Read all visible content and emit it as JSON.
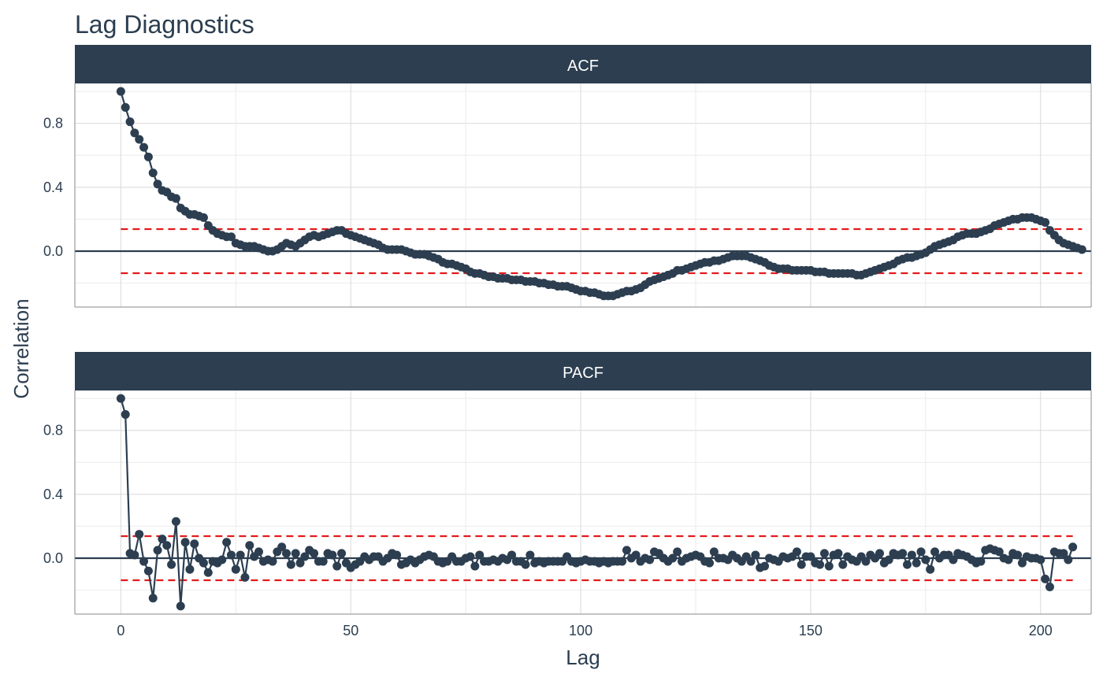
{
  "title": "Lag Diagnostics",
  "colors": {
    "series": "#2c3e50",
    "strip": "#2c3e50",
    "ci": "#e31a1c",
    "grid": "#d9d9d9"
  },
  "chart_data": {
    "type": "line",
    "title": "Lag Diagnostics",
    "xlabel": "Lag",
    "ylabel": "Correlation",
    "xlim": [
      -10,
      211
    ],
    "ylim": [
      -0.35,
      1.05
    ],
    "x_ticks": [
      0,
      50,
      100,
      150,
      200
    ],
    "y_ticks": [
      0.0,
      0.4,
      0.8
    ],
    "y_tick_labels": [
      "0.0",
      "0.4",
      "0.8"
    ],
    "x_tick_labels": [
      "0",
      "50",
      "100",
      "150",
      "200"
    ],
    "grid": true,
    "confidence_bound": 0.138,
    "panels": [
      {
        "label": "ACF",
        "lag_start": 0,
        "lag_step": 1,
        "values": [
          1.0,
          0.9,
          0.81,
          0.74,
          0.7,
          0.65,
          0.59,
          0.49,
          0.42,
          0.38,
          0.37,
          0.34,
          0.33,
          0.27,
          0.25,
          0.23,
          0.23,
          0.22,
          0.21,
          0.16,
          0.13,
          0.11,
          0.1,
          0.09,
          0.09,
          0.05,
          0.04,
          0.03,
          0.03,
          0.03,
          0.02,
          0.01,
          0.0,
          0.0,
          0.01,
          0.03,
          0.05,
          0.04,
          0.03,
          0.05,
          0.07,
          0.09,
          0.1,
          0.09,
          0.1,
          0.11,
          0.12,
          0.13,
          0.13,
          0.11,
          0.1,
          0.09,
          0.08,
          0.07,
          0.06,
          0.05,
          0.04,
          0.02,
          0.01,
          0.01,
          0.01,
          0.01,
          0.0,
          -0.01,
          -0.02,
          -0.02,
          -0.02,
          -0.03,
          -0.04,
          -0.05,
          -0.07,
          -0.08,
          -0.08,
          -0.09,
          -0.1,
          -0.11,
          -0.13,
          -0.14,
          -0.14,
          -0.15,
          -0.16,
          -0.16,
          -0.17,
          -0.17,
          -0.17,
          -0.18,
          -0.18,
          -0.18,
          -0.19,
          -0.19,
          -0.19,
          -0.2,
          -0.2,
          -0.21,
          -0.21,
          -0.22,
          -0.22,
          -0.22,
          -0.23,
          -0.24,
          -0.25,
          -0.25,
          -0.26,
          -0.26,
          -0.27,
          -0.28,
          -0.28,
          -0.28,
          -0.27,
          -0.26,
          -0.25,
          -0.25,
          -0.24,
          -0.23,
          -0.21,
          -0.19,
          -0.18,
          -0.17,
          -0.16,
          -0.15,
          -0.14,
          -0.12,
          -0.12,
          -0.11,
          -0.1,
          -0.09,
          -0.08,
          -0.07,
          -0.07,
          -0.06,
          -0.06,
          -0.05,
          -0.04,
          -0.03,
          -0.03,
          -0.03,
          -0.03,
          -0.04,
          -0.05,
          -0.06,
          -0.07,
          -0.09,
          -0.1,
          -0.11,
          -0.11,
          -0.11,
          -0.12,
          -0.12,
          -0.12,
          -0.12,
          -0.12,
          -0.13,
          -0.13,
          -0.13,
          -0.14,
          -0.14,
          -0.14,
          -0.14,
          -0.14,
          -0.14,
          -0.15,
          -0.15,
          -0.14,
          -0.13,
          -0.12,
          -0.11,
          -0.1,
          -0.09,
          -0.08,
          -0.06,
          -0.05,
          -0.04,
          -0.04,
          -0.03,
          -0.02,
          -0.01,
          0.01,
          0.03,
          0.04,
          0.05,
          0.06,
          0.07,
          0.09,
          0.1,
          0.11,
          0.11,
          0.11,
          0.12,
          0.13,
          0.14,
          0.16,
          0.17,
          0.18,
          0.19,
          0.2,
          0.2,
          0.21,
          0.21,
          0.21,
          0.2,
          0.19,
          0.18,
          0.13,
          0.1,
          0.07,
          0.05,
          0.04,
          0.03,
          0.02,
          0.01
        ]
      },
      {
        "label": "PACF",
        "lag_start": 0,
        "lag_step": 1,
        "values": [
          1.0,
          0.9,
          0.03,
          0.02,
          0.15,
          -0.02,
          -0.08,
          -0.25,
          0.05,
          0.12,
          0.08,
          -0.04,
          0.23,
          -0.3,
          0.1,
          -0.07,
          0.09,
          0.0,
          -0.03,
          -0.09,
          -0.02,
          -0.03,
          -0.01,
          0.1,
          0.02,
          -0.07,
          0.02,
          -0.12,
          0.08,
          0.01,
          0.04,
          -0.02,
          -0.01,
          -0.02,
          0.04,
          0.07,
          0.03,
          -0.04,
          0.03,
          -0.03,
          0.01,
          0.05,
          0.03,
          -0.02,
          -0.02,
          0.03,
          0.02,
          -0.05,
          0.03,
          -0.03,
          -0.06,
          -0.04,
          -0.02,
          0.01,
          -0.01,
          0.01,
          0.01,
          -0.02,
          0.0,
          0.03,
          0.02,
          -0.04,
          -0.03,
          -0.01,
          -0.03,
          -0.01,
          0.01,
          0.02,
          0.01,
          -0.02,
          -0.03,
          -0.02,
          0.01,
          -0.02,
          -0.02,
          0.0,
          0.01,
          -0.05,
          0.02,
          -0.02,
          -0.02,
          -0.01,
          -0.02,
          0.0,
          -0.01,
          0.02,
          -0.02,
          -0.02,
          -0.04,
          0.02,
          -0.03,
          -0.02,
          -0.03,
          -0.02,
          -0.02,
          -0.02,
          -0.02,
          0.01,
          -0.02,
          -0.03,
          -0.02,
          -0.01,
          -0.02,
          -0.02,
          -0.03,
          -0.02,
          -0.03,
          -0.02,
          -0.02,
          -0.02,
          0.05,
          0.0,
          0.02,
          -0.02,
          0.0,
          -0.01,
          0.04,
          0.03,
          0.0,
          -0.02,
          0.0,
          0.04,
          -0.02,
          0.0,
          0.01,
          0.02,
          0.01,
          -0.02,
          -0.03,
          0.04,
          0.0,
          0.0,
          -0.01,
          0.02,
          0.0,
          -0.02,
          0.01,
          -0.02,
          0.02,
          -0.06,
          -0.05,
          0.0,
          -0.01,
          -0.02,
          0.01,
          0.0,
          0.01,
          0.04,
          -0.04,
          0.01,
          0.01,
          -0.03,
          -0.04,
          0.03,
          -0.05,
          0.02,
          0.03,
          -0.04,
          0.01,
          -0.01,
          -0.02,
          0.01,
          -0.02,
          0.02,
          0.0,
          0.03,
          -0.03,
          -0.01,
          0.03,
          0.02,
          0.03,
          -0.04,
          0.02,
          -0.03,
          0.04,
          -0.01,
          -0.07,
          0.04,
          0.0,
          0.02,
          0.02,
          -0.01,
          0.03,
          0.02,
          0.01,
          -0.01,
          -0.03,
          -0.02,
          0.05,
          0.06,
          0.05,
          0.04,
          0.0,
          -0.01,
          0.03,
          0.02,
          -0.03,
          0.01,
          0.0,
          0.0,
          -0.01,
          -0.13,
          -0.18,
          0.04,
          0.03,
          0.03,
          -0.01,
          0.07
        ]
      }
    ]
  }
}
